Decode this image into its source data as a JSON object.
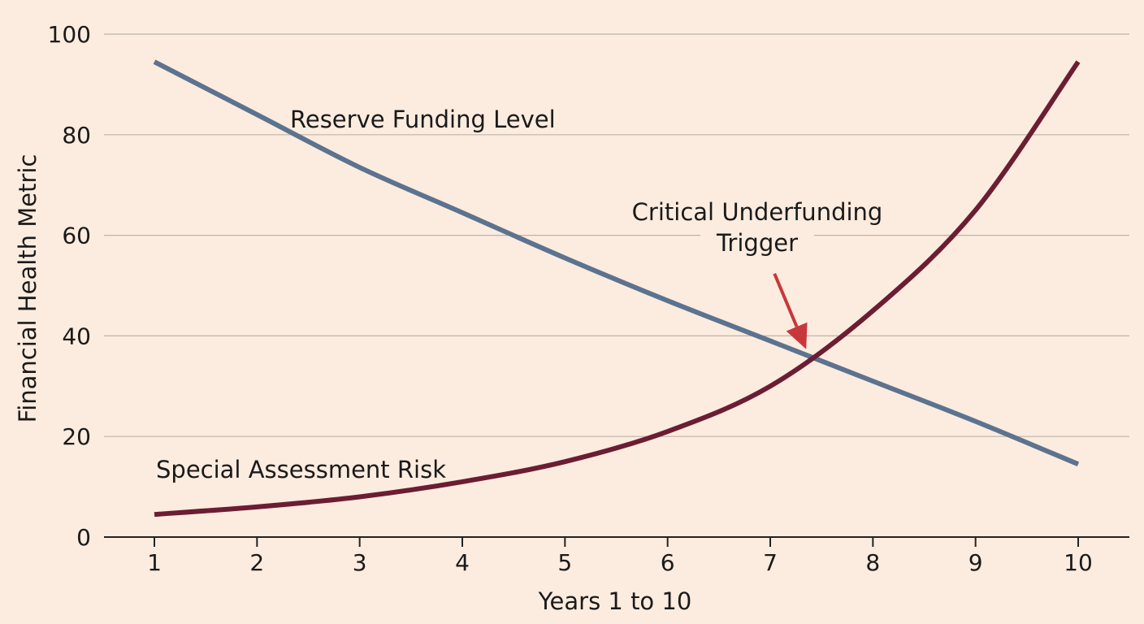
{
  "chart_data": {
    "type": "line",
    "xlabel": "Years 1 to 10",
    "ylabel": "Financial Health Metric",
    "x": [
      1,
      2,
      3,
      4,
      5,
      6,
      7,
      8,
      9,
      10
    ],
    "xlim": [
      1,
      10
    ],
    "ylim": [
      0,
      100
    ],
    "x_ticks": [
      "1",
      "2",
      "3",
      "4",
      "5",
      "6",
      "7",
      "8",
      "9",
      "10"
    ],
    "y_ticks": [
      "0",
      "20",
      "40",
      "60",
      "80",
      "100"
    ],
    "grid": "horizontal",
    "legend": "none",
    "series": [
      {
        "name": "Reserve Funding Level",
        "color": "#5c7390",
        "values": [
          94.5,
          84,
          73.5,
          64.5,
          55.5,
          47,
          39,
          31,
          23,
          14.5
        ]
      },
      {
        "name": "Special Assessment Risk",
        "color": "#6b1d33",
        "values": [
          4.5,
          6,
          8,
          11,
          15,
          21,
          30,
          45,
          65,
          94.5
        ]
      }
    ],
    "annotations": [
      {
        "text_line1": "Critical Underfunding",
        "text_line2": "Trigger",
        "color": "#c8373b",
        "points_to": {
          "x": 7.35,
          "y": 38
        }
      }
    ]
  }
}
